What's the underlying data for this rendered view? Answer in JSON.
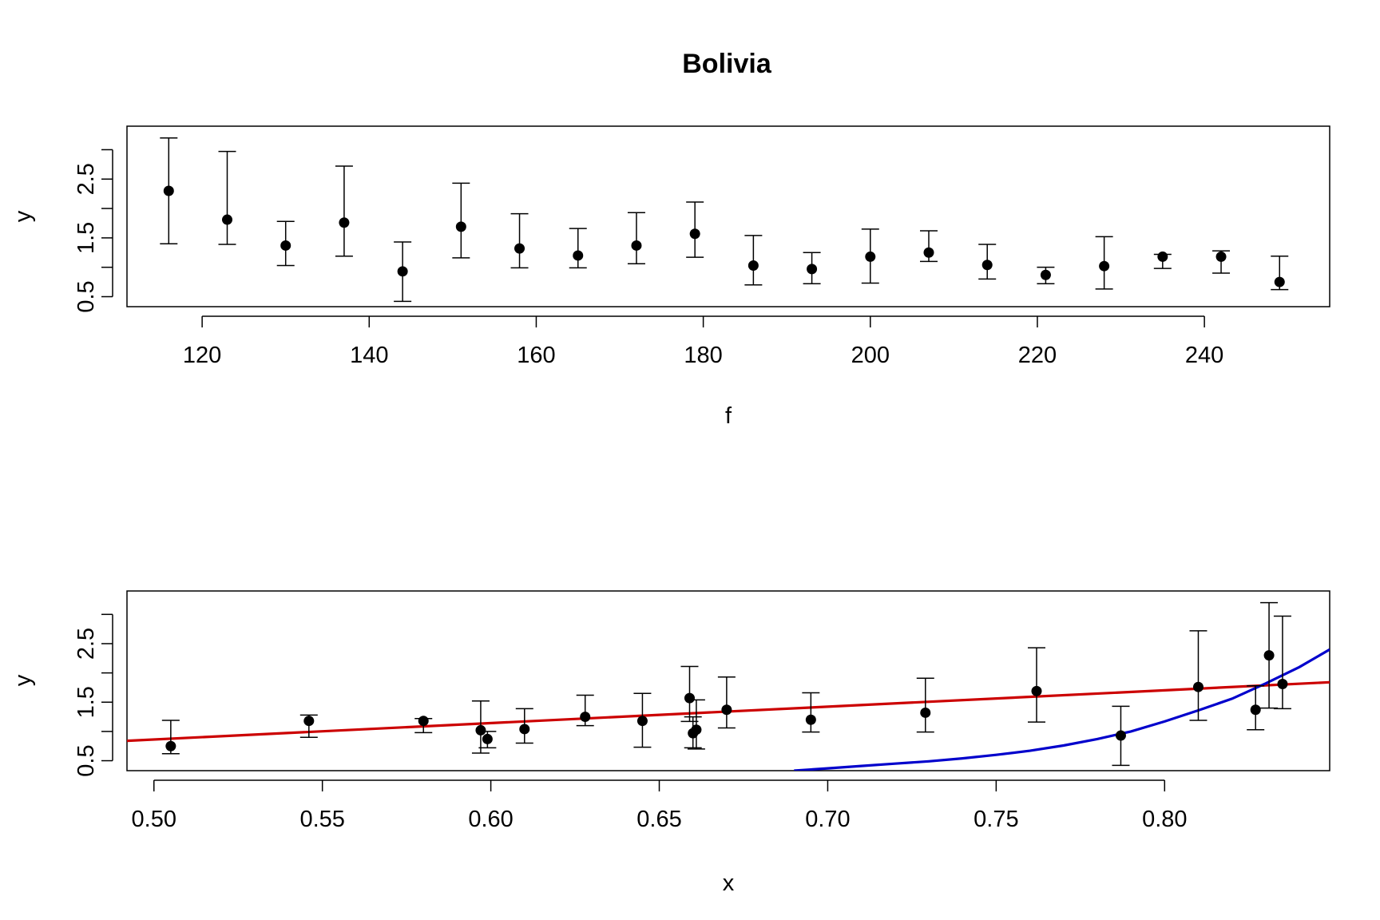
{
  "figure": {
    "title": "Bolivia"
  },
  "chart_data": [
    {
      "type": "scatter",
      "title": "Bolivia",
      "xlabel": "f",
      "ylabel": "y",
      "xlim": [
        111,
        255
      ],
      "ylim": [
        0.33,
        3.4
      ],
      "xticks": [
        120,
        140,
        160,
        180,
        200,
        220,
        240
      ],
      "xtick_labels": [
        "120",
        "140",
        "160",
        "180",
        "200",
        "220",
        "240"
      ],
      "yticks": [
        0.5,
        1.0,
        1.5,
        2.0,
        2.5,
        3.0
      ],
      "ytick_labels": [
        "0.5",
        "",
        "1.5",
        "",
        "2.5",
        ""
      ],
      "error_bars": true,
      "series": [
        {
          "marker_color": "#000000",
          "x": [
            116,
            123,
            130,
            137,
            144,
            151,
            158,
            165,
            172,
            179,
            186,
            193,
            200,
            207,
            214,
            221,
            228,
            235,
            242,
            249
          ],
          "y": [
            2.3,
            1.81,
            1.37,
            1.76,
            0.93,
            1.69,
            1.32,
            1.2,
            1.37,
            1.57,
            1.03,
            0.97,
            1.18,
            1.25,
            1.04,
            0.87,
            1.02,
            1.18,
            1.18,
            0.75
          ],
          "lower": [
            1.4,
            1.39,
            1.03,
            1.19,
            0.42,
            1.16,
            0.99,
            0.99,
            1.06,
            1.17,
            0.7,
            0.72,
            0.73,
            1.1,
            0.8,
            0.72,
            0.63,
            0.98,
            0.9,
            0.62
          ],
          "upper": [
            3.2,
            2.97,
            1.78,
            2.72,
            1.43,
            2.43,
            1.91,
            1.66,
            1.93,
            2.11,
            1.54,
            1.25,
            1.65,
            1.62,
            1.39,
            1.0,
            1.52,
            1.22,
            1.28,
            1.19
          ]
        }
      ]
    },
    {
      "type": "scatter",
      "title": "",
      "xlabel": "x",
      "ylabel": "y",
      "xlim": [
        0.492,
        0.849
      ],
      "ylim": [
        0.33,
        3.4
      ],
      "xticks": [
        0.5,
        0.55,
        0.6,
        0.65,
        0.7,
        0.75,
        0.8
      ],
      "xtick_labels": [
        "0.50",
        "0.55",
        "0.60",
        "0.65",
        "0.70",
        "0.75",
        "0.80"
      ],
      "yticks": [
        0.5,
        1.0,
        1.5,
        2.0,
        2.5,
        3.0
      ],
      "ytick_labels": [
        "0.5",
        "",
        "1.5",
        "",
        "2.5",
        ""
      ],
      "error_bars": true,
      "series": [
        {
          "marker_color": "#000000",
          "x": [
            0.505,
            0.546,
            0.58,
            0.597,
            0.599,
            0.61,
            0.628,
            0.645,
            0.659,
            0.66,
            0.661,
            0.67,
            0.695,
            0.729,
            0.762,
            0.787,
            0.81,
            0.827,
            0.831,
            0.835
          ],
          "y": [
            0.75,
            1.18,
            1.18,
            1.02,
            0.87,
            1.04,
            1.25,
            1.18,
            1.57,
            0.97,
            1.03,
            1.37,
            1.2,
            1.32,
            1.69,
            0.93,
            1.76,
            1.37,
            2.3,
            1.81
          ],
          "lower": [
            0.62,
            0.9,
            0.98,
            0.63,
            0.72,
            0.8,
            1.1,
            0.73,
            1.17,
            0.72,
            0.7,
            1.06,
            0.99,
            0.99,
            1.16,
            0.42,
            1.19,
            1.03,
            1.4,
            1.39
          ],
          "upper": [
            1.19,
            1.28,
            1.22,
            1.52,
            1.0,
            1.39,
            1.62,
            1.65,
            2.11,
            1.25,
            1.54,
            1.93,
            1.66,
            1.91,
            2.43,
            1.43,
            2.72,
            1.78,
            3.2,
            2.97
          ]
        }
      ],
      "lines": [
        {
          "color": "#cc0000",
          "x": [
            0.492,
            0.849
          ],
          "y": [
            0.84,
            1.84
          ]
        },
        {
          "color": "#0000cc",
          "x": [
            0.69,
            0.7,
            0.71,
            0.72,
            0.73,
            0.74,
            0.75,
            0.76,
            0.77,
            0.78,
            0.79,
            0.8,
            0.81,
            0.82,
            0.83,
            0.84,
            0.849
          ],
          "y": [
            0.33,
            0.37,
            0.41,
            0.45,
            0.49,
            0.54,
            0.6,
            0.67,
            0.76,
            0.87,
            1.0,
            1.17,
            1.36,
            1.56,
            1.82,
            2.1,
            2.4
          ]
        }
      ]
    }
  ]
}
